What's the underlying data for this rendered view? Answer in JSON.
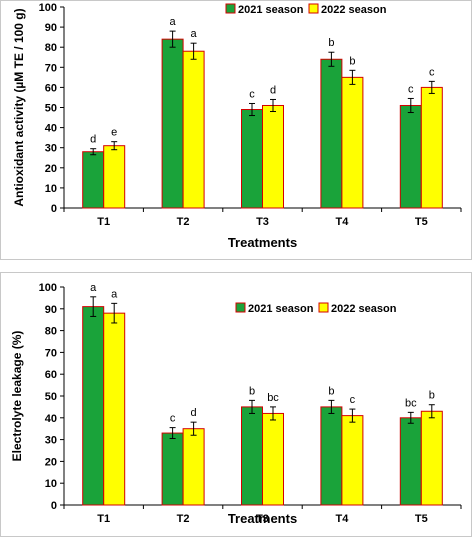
{
  "chart_data": [
    {
      "type": "bar",
      "title": "",
      "xlabel": "Treatments",
      "ylabel": "Antioxidant activity (µM TE / 100 g)",
      "categories": [
        "T1",
        "T2",
        "T3",
        "T4",
        "T5"
      ],
      "ylim": [
        0,
        100
      ],
      "yticks": [
        0,
        10,
        20,
        30,
        40,
        50,
        60,
        70,
        80,
        90,
        100
      ],
      "legend_position": "top-right",
      "grid": false,
      "series": [
        {
          "name": "2021 season",
          "color": "#1aa33a",
          "values": [
            28,
            84,
            49,
            74,
            51
          ],
          "errors": [
            1.5,
            4,
            3,
            3.5,
            3.5
          ],
          "labels": [
            "d",
            "a",
            "c",
            "b",
            "c"
          ]
        },
        {
          "name": "2022 season",
          "color": "#ffff00",
          "values": [
            31,
            78,
            51,
            65,
            60
          ],
          "errors": [
            2,
            4,
            3,
            3.5,
            3
          ],
          "labels": [
            "e",
            "a",
            "d",
            "b",
            "c"
          ]
        }
      ]
    },
    {
      "type": "bar",
      "title": "",
      "xlabel": "Treatments",
      "ylabel": "Electrolyte leakage (%)",
      "categories": [
        "T1",
        "T2",
        "T3",
        "T4",
        "T5"
      ],
      "ylim": [
        0,
        100
      ],
      "yticks": [
        0,
        10,
        20,
        30,
        40,
        50,
        60,
        70,
        80,
        90,
        100
      ],
      "legend_position": "top-right",
      "grid": false,
      "series": [
        {
          "name": "2021 season",
          "color": "#1aa33a",
          "values": [
            91,
            33,
            45,
            45,
            40
          ],
          "errors": [
            4.5,
            2.5,
            3,
            3,
            2.5
          ],
          "labels": [
            "a",
            "c",
            "b",
            "b",
            "bc"
          ]
        },
        {
          "name": "2022 season",
          "color": "#ffff00",
          "values": [
            88,
            35,
            42,
            41,
            43
          ],
          "errors": [
            4.5,
            3,
            3,
            3,
            3
          ],
          "labels": [
            "a",
            "d",
            "bc",
            "c",
            "b"
          ]
        }
      ]
    }
  ]
}
